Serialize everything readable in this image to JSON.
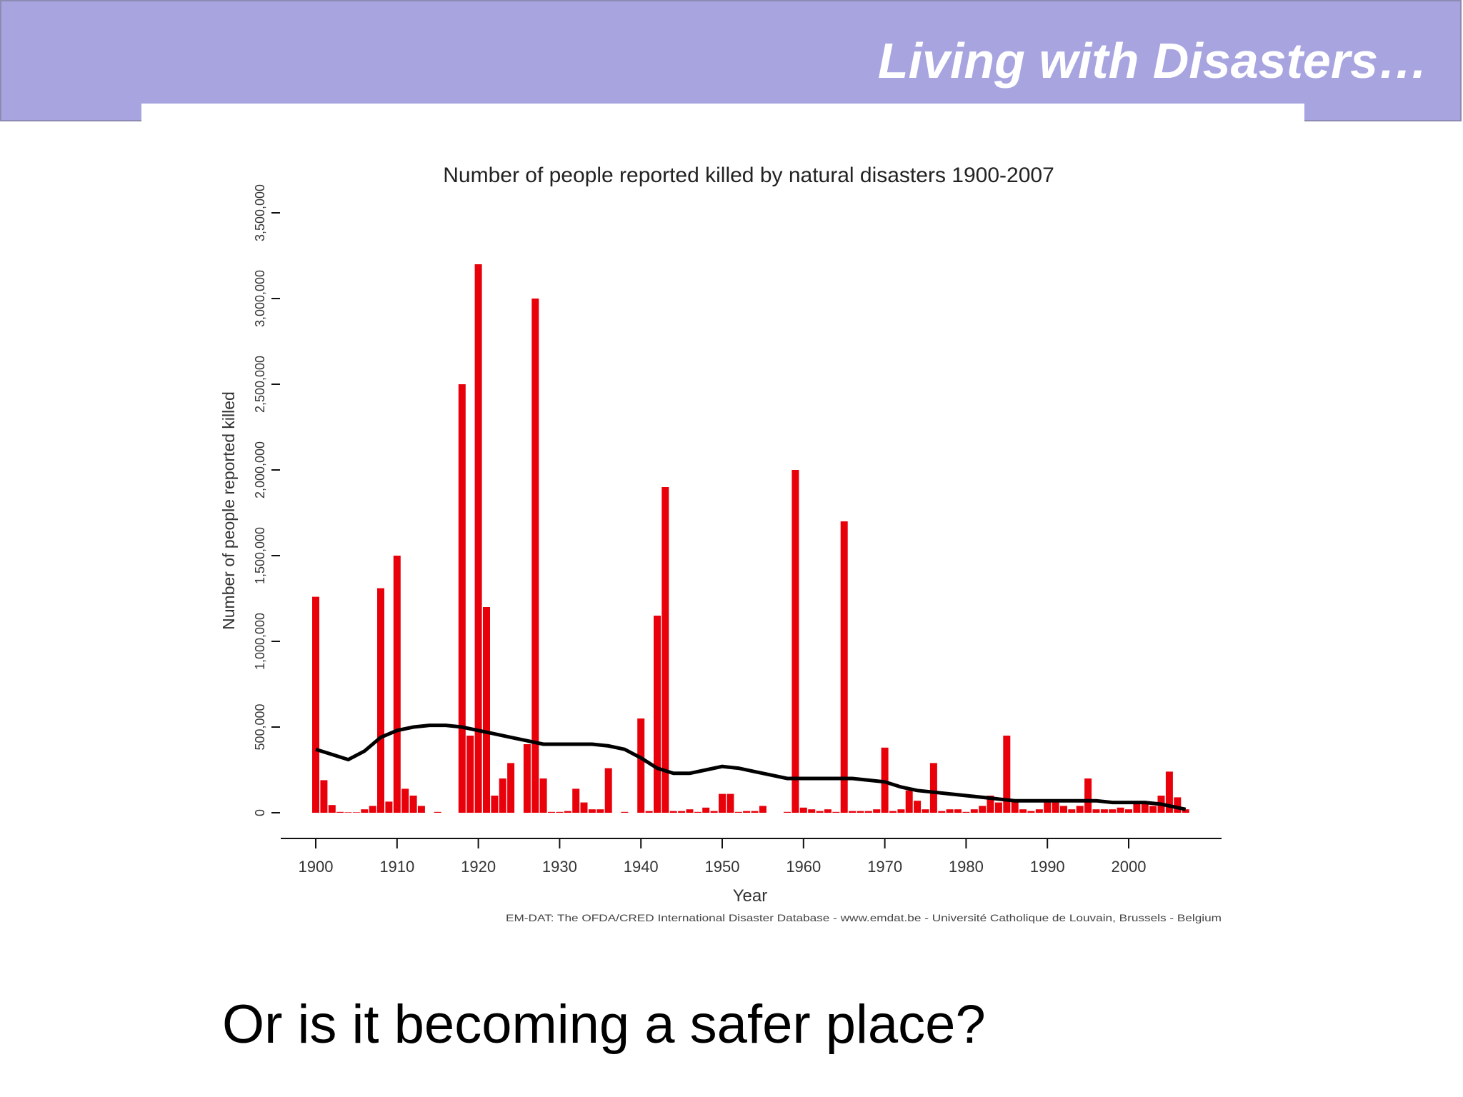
{
  "slide": {
    "header_title": "Living with Disasters…",
    "body_text": "Or is it becoming a safer place?",
    "colors": {
      "header_band": "#a7a4e0",
      "bar": "#e8000b",
      "trend_line": "#000000"
    }
  },
  "chart_data": {
    "type": "bar",
    "title": "Number of people reported killed by natural disasters 1900-2007",
    "xlabel": "Year",
    "ylabel": "Number of people reported killed",
    "source_note": "EM-DAT: The OFDA/CRED International Disaster Database - www.emdat.be - Université Catholique de Louvain, Brussels - Belgium",
    "x_ticks": [
      "1900",
      "1910",
      "1920",
      "1930",
      "1940",
      "1950",
      "1960",
      "1970",
      "1980",
      "1990",
      "2000"
    ],
    "y_ticks": [
      "0",
      "500,000",
      "1,000,000",
      "1,500,000",
      "2,000,000",
      "2,500,000",
      "3,000,000",
      "3,500,000"
    ],
    "xlim": [
      1896,
      2012
    ],
    "ylim": [
      0,
      3500000
    ],
    "grid": false,
    "legend": "none",
    "categories": [
      1900,
      1901,
      1902,
      1903,
      1904,
      1905,
      1906,
      1907,
      1908,
      1909,
      1910,
      1911,
      1912,
      1913,
      1914,
      1915,
      1916,
      1917,
      1918,
      1919,
      1920,
      1921,
      1922,
      1923,
      1924,
      1925,
      1926,
      1927,
      1928,
      1929,
      1930,
      1931,
      1932,
      1933,
      1934,
      1935,
      1936,
      1937,
      1938,
      1939,
      1940,
      1941,
      1942,
      1943,
      1944,
      1945,
      1946,
      1947,
      1948,
      1949,
      1950,
      1951,
      1952,
      1953,
      1954,
      1955,
      1956,
      1957,
      1958,
      1959,
      1960,
      1961,
      1962,
      1963,
      1964,
      1965,
      1966,
      1967,
      1968,
      1969,
      1970,
      1971,
      1972,
      1973,
      1974,
      1975,
      1976,
      1977,
      1978,
      1979,
      1980,
      1981,
      1982,
      1983,
      1984,
      1985,
      1986,
      1987,
      1988,
      1989,
      1990,
      1991,
      1992,
      1993,
      1994,
      1995,
      1996,
      1997,
      1998,
      1999,
      2000,
      2001,
      2002,
      2003,
      2004,
      2005,
      2006,
      2007
    ],
    "series": [
      {
        "values": [
          1260000,
          190000,
          45000,
          5000,
          3000,
          3000,
          20000,
          40000,
          1310000,
          65000,
          1500000,
          140000,
          100000,
          40000,
          0,
          5000,
          0,
          0,
          2500000,
          450000,
          3200000,
          1200000,
          100000,
          200000,
          290000,
          0,
          400000,
          3000000,
          200000,
          5000,
          5000,
          10000,
          140000,
          60000,
          20000,
          20000,
          260000,
          0,
          5000,
          0,
          550000,
          10000,
          1150000,
          1900000,
          10000,
          10000,
          20000,
          5000,
          30000,
          10000,
          110000,
          110000,
          5000,
          10000,
          10000,
          40000,
          0,
          0,
          5000,
          2000000,
          30000,
          20000,
          10000,
          20000,
          5000,
          1700000,
          10000,
          10000,
          10000,
          20000,
          380000,
          10000,
          20000,
          130000,
          70000,
          20000,
          290000,
          10000,
          20000,
          20000,
          5000,
          20000,
          40000,
          100000,
          60000,
          450000,
          70000,
          20000,
          10000,
          20000,
          60000,
          60000,
          40000,
          20000,
          40000,
          200000,
          20000,
          20000,
          20000,
          30000,
          20000,
          60000,
          50000,
          40000,
          100000,
          240000,
          90000,
          20000
        ]
      }
    ],
    "trend_line": {
      "x": [
        1900,
        1902,
        1904,
        1906,
        1908,
        1910,
        1912,
        1914,
        1916,
        1918,
        1920,
        1922,
        1924,
        1926,
        1928,
        1930,
        1932,
        1934,
        1936,
        1938,
        1940,
        1942,
        1944,
        1946,
        1948,
        1950,
        1952,
        1954,
        1956,
        1958,
        1960,
        1962,
        1964,
        1966,
        1968,
        1970,
        1972,
        1974,
        1976,
        1978,
        1980,
        1982,
        1984,
        1986,
        1988,
        1990,
        1992,
        1994,
        1996,
        1998,
        2000,
        2002,
        2004,
        2006,
        2007
      ],
      "y": [
        370000,
        340000,
        310000,
        360000,
        440000,
        480000,
        500000,
        510000,
        510000,
        500000,
        480000,
        460000,
        440000,
        420000,
        400000,
        400000,
        400000,
        400000,
        390000,
        370000,
        320000,
        260000,
        230000,
        230000,
        250000,
        270000,
        260000,
        240000,
        220000,
        200000,
        200000,
        200000,
        200000,
        200000,
        190000,
        180000,
        150000,
        130000,
        120000,
        110000,
        100000,
        90000,
        80000,
        70000,
        70000,
        70000,
        70000,
        70000,
        70000,
        60000,
        60000,
        60000,
        50000,
        30000,
        20000
      ]
    }
  }
}
